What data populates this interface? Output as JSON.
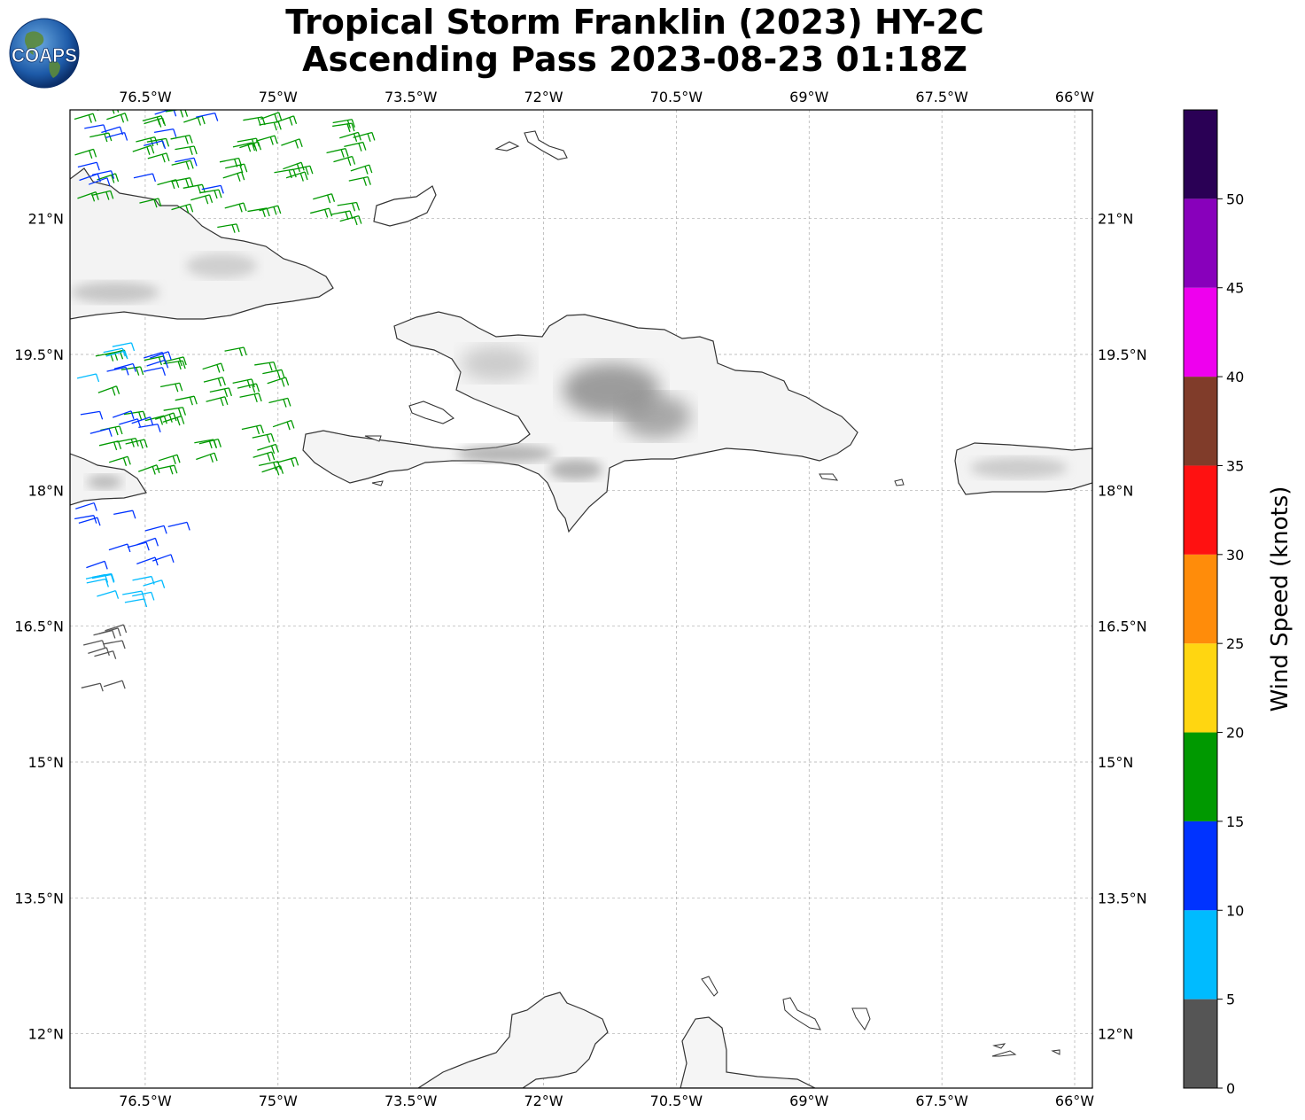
{
  "title": {
    "line1": "Tropical Storm Franklin (2023) HY-2C",
    "line2": "Ascending Pass 2023-08-23 01:18Z"
  },
  "logo": {
    "text": "COAPS",
    "icon": "globe-icon"
  },
  "map": {
    "lon_range": [
      -77.35,
      -65.8
    ],
    "lat_range": [
      11.4,
      22.2
    ],
    "lon_ticks": [
      -76.5,
      -75,
      -73.5,
      -72,
      -70.5,
      -69,
      -67.5,
      -66
    ],
    "lon_labels": [
      "76.5°W",
      "75°W",
      "73.5°W",
      "72°W",
      "70.5°W",
      "69°W",
      "67.5°W",
      "66°W"
    ],
    "lat_ticks": [
      21,
      19.5,
      18,
      16.5,
      15,
      13.5,
      12
    ],
    "lat_labels": [
      "21°N",
      "19.5°N",
      "18°N",
      "16.5°N",
      "15°N",
      "13.5°N",
      "12°N"
    ],
    "grid": true,
    "land_outline_color": "#333333"
  },
  "colorbar": {
    "label": "Wind Speed (knots)",
    "bounds": [
      0,
      5,
      10,
      15,
      20,
      25,
      30,
      35,
      40,
      45,
      50,
      55
    ],
    "tick_labels": [
      "0",
      "5",
      "10",
      "15",
      "20",
      "25",
      "30",
      "35",
      "40",
      "45",
      "50"
    ],
    "colors": [
      "#555555",
      "#00bbff",
      "#0033ff",
      "#009900",
      "#ffd611",
      "#ff8c0a",
      "#ff1111",
      "#803c2a",
      "#ee00ee",
      "#8800bb",
      "#2a0055"
    ]
  },
  "chart_data": {
    "type": "scatter",
    "description_units": "lon/lat degrees, wind speed knots",
    "barb_swaths": [
      {
        "lon": [
          -77.3,
          -74.0
        ],
        "lat": [
          20.9,
          22.2
        ],
        "speed": 16,
        "count": 60
      },
      {
        "lon": [
          -77.3,
          -75.8
        ],
        "lat": [
          21.3,
          22.2
        ],
        "speed": 12,
        "count": 14
      },
      {
        "lon": [
          -77.3,
          -75.0
        ],
        "lat": [
          18.2,
          19.6
        ],
        "speed": 17,
        "count": 45
      },
      {
        "lon": [
          -77.3,
          -76.4
        ],
        "lat": [
          18.6,
          19.5
        ],
        "speed": 12,
        "count": 12
      },
      {
        "lon": [
          -77.3,
          -76.6
        ],
        "lat": [
          19.2,
          19.6
        ],
        "speed": 8,
        "count": 4
      },
      {
        "lon": [
          -77.3,
          -76.2
        ],
        "lat": [
          17.1,
          17.8
        ],
        "speed": 12,
        "count": 12
      },
      {
        "lon": [
          -77.3,
          -76.5
        ],
        "lat": [
          16.6,
          17.1
        ],
        "speed": 8,
        "count": 10
      },
      {
        "lon": [
          -77.3,
          -76.9
        ],
        "lat": [
          15.8,
          16.6
        ],
        "speed": 3,
        "count": 9
      }
    ]
  }
}
